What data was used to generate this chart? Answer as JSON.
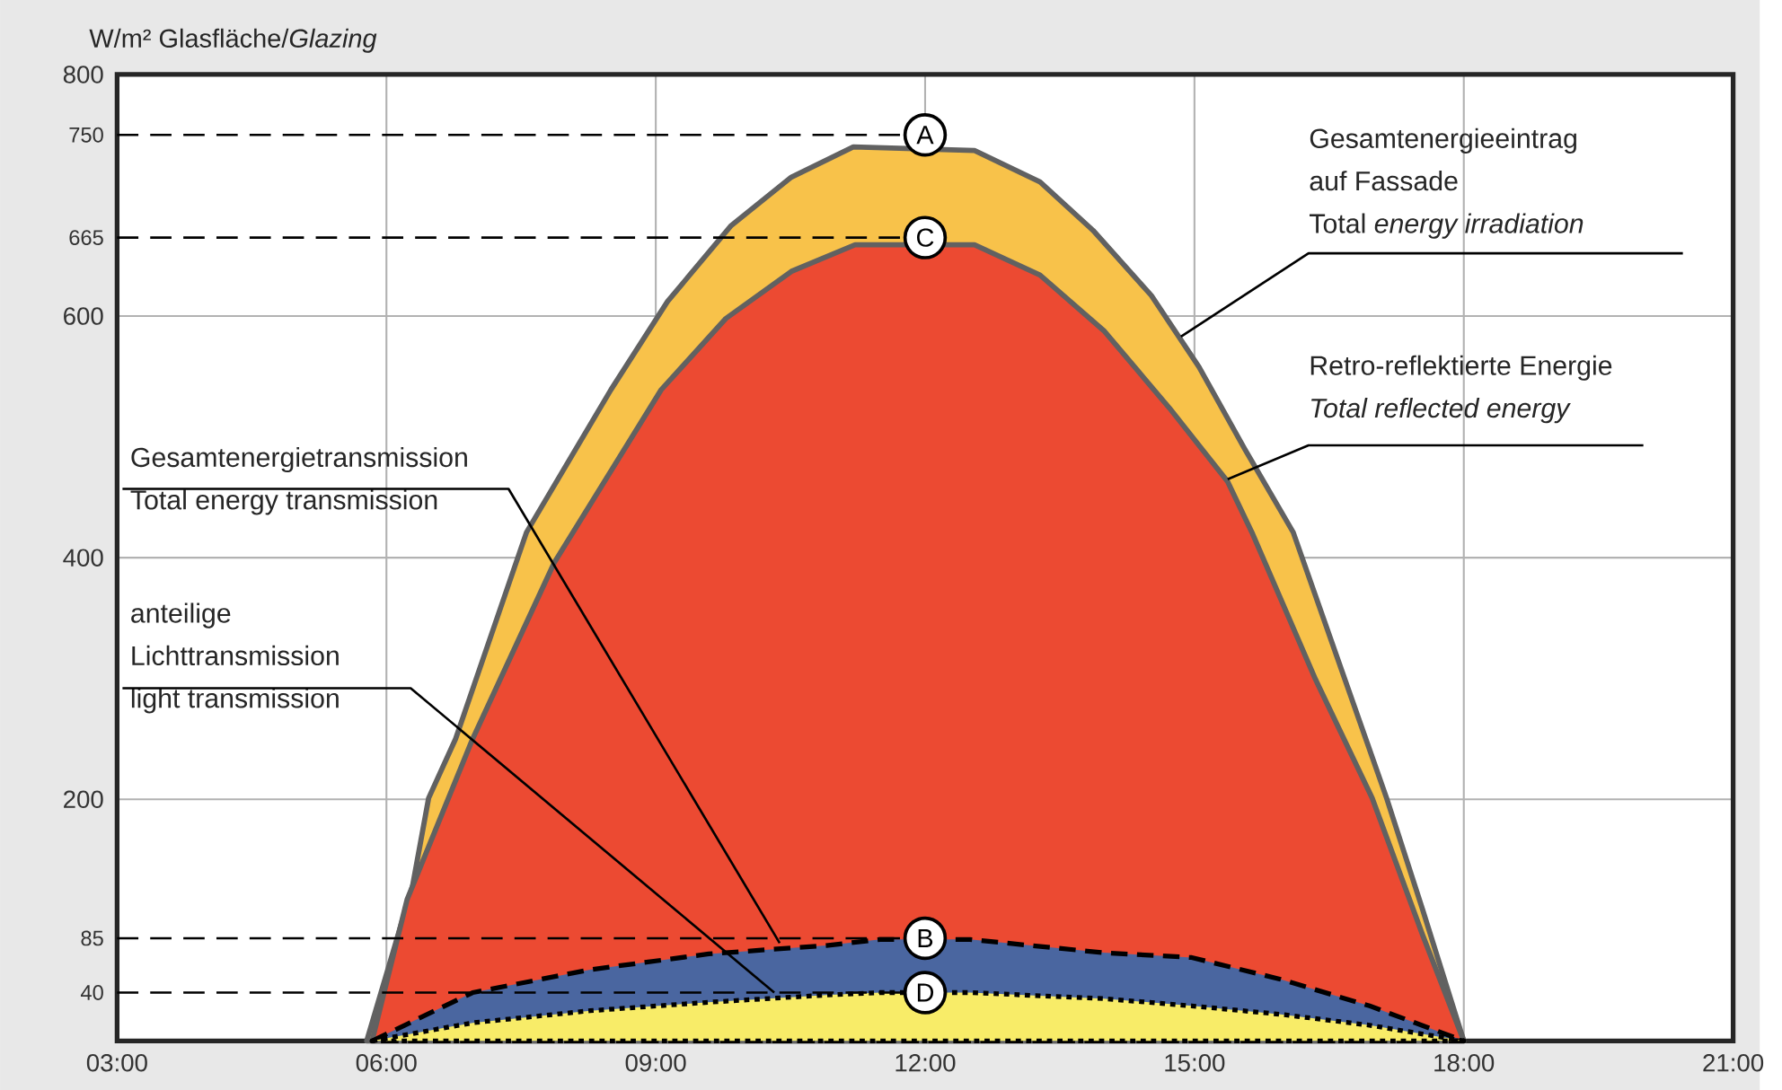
{
  "chart_data": {
    "type": "area",
    "ylabel": "W/m² Glasfläche/*Glazing*",
    "xlim": [
      3,
      21
    ],
    "xticks": [
      {
        "value": 3,
        "label": "03:00"
      },
      {
        "value": 6,
        "label": "06:00"
      },
      {
        "value": 9,
        "label": "09:00"
      },
      {
        "value": 12,
        "label": "12:00"
      },
      {
        "value": 15,
        "label": "15:00"
      },
      {
        "value": 18,
        "label": "18:00"
      },
      {
        "value": 21,
        "label": "21:00"
      }
    ],
    "ylim": [
      0,
      800
    ],
    "yticks": [
      40,
      85,
      200,
      400,
      600,
      665,
      750,
      800
    ],
    "grid": true,
    "series": [
      {
        "color": "#f8c24a",
        "line_style": "solid",
        "x": [
          5.78,
          6.29,
          6.47,
          6.77,
          7.56,
          8.5,
          9.13,
          9.84,
          10.51,
          11.2,
          12.55,
          13.28,
          13.87,
          14.52,
          15.05,
          15.56,
          16.1,
          17.14,
          17.54,
          18
        ],
        "values": [
          0,
          128,
          201,
          250,
          421,
          539,
          612,
          675,
          715,
          740,
          737,
          711,
          671,
          617,
          558,
          490,
          421,
          201,
          109,
          0
        ]
      },
      {
        "color": "#ec4a32",
        "line_style": "solid",
        "x": [
          5.84,
          6.23,
          6.96,
          7.87,
          9.06,
          9.78,
          10.51,
          11.22,
          12.55,
          13.28,
          13.99,
          14.72,
          15.37,
          15.64,
          16.35,
          16.98,
          17.54,
          18
        ],
        "values": [
          0,
          117,
          250,
          396,
          539,
          598,
          637,
          659,
          659,
          634,
          588,
          524,
          463,
          421,
          299,
          201,
          88,
          0
        ]
      },
      {
        "color": "#4a66a0",
        "line_style": "dashed",
        "x": [
          5.84,
          6.96,
          8.27,
          9.59,
          10.9,
          11.5,
          12.5,
          13.99,
          14.97,
          15.96,
          16.95,
          18
        ],
        "values": [
          0,
          40,
          59,
          72,
          79,
          84,
          84,
          73,
          69,
          51,
          29,
          0
        ]
      },
      {
        "color": "#f8ec68",
        "line_style": "dotted",
        "x": [
          5.84,
          6.96,
          8.27,
          9.59,
          10.9,
          11.5,
          12.5,
          13.99,
          14.97,
          15.96,
          16.95,
          18
        ],
        "values": [
          0,
          15,
          25,
          32,
          38,
          40,
          40,
          35,
          29,
          22,
          13,
          0
        ]
      }
    ],
    "ref_lines": [
      {
        "axis": "y",
        "value": 750,
        "line_style": "dashed"
      },
      {
        "axis": "y",
        "value": 665,
        "line_style": "dashed"
      },
      {
        "axis": "y",
        "value": 85,
        "line_style": "dashed"
      },
      {
        "axis": "y",
        "value": 40,
        "line_style": "dashed"
      }
    ],
    "annotations": [
      {
        "text": "Gesamtenergieeintrag\nauf Fassade\nTotal *energy irradiation*",
        "x": 14.85,
        "y": 583
      },
      {
        "text": "Retro-reflektierte Energie\n*Total reflected energy*",
        "x": 15.37,
        "y": 465
      },
      {
        "text": "Gesamtenergietransmission\nTotal energy transmission",
        "x": 10.38,
        "y": 81
      },
      {
        "text": "anteilige\nLichttransmission\nlight transmission",
        "x": 10.32,
        "y": 40
      },
      {
        "text": "A",
        "x": 12,
        "y": 750
      },
      {
        "text": "C",
        "x": 12,
        "y": 665
      },
      {
        "text": "B",
        "x": 12,
        "y": 85
      },
      {
        "text": "D",
        "x": 12,
        "y": 40
      }
    ]
  }
}
